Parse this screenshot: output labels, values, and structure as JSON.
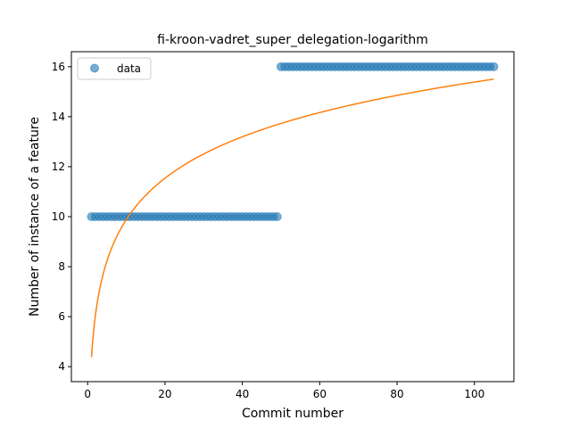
{
  "chart_data": {
    "type": "scatter",
    "title": "fi-kroon-vadret_super_delegation-logarithm",
    "xlabel": "Commit number",
    "ylabel": "Number of instance of a feature",
    "xlim": [
      -4.2,
      110.2
    ],
    "ylim": [
      3.4,
      16.6
    ],
    "xticks": [
      0,
      20,
      40,
      60,
      80,
      100
    ],
    "yticks": [
      4,
      6,
      8,
      10,
      12,
      14,
      16
    ],
    "legend": {
      "position": "top-left",
      "entries": [
        "data"
      ]
    },
    "series": [
      {
        "name": "data",
        "kind": "scatter",
        "color": "#1f77b4",
        "segments": [
          {
            "x_start": 1,
            "x_end": 49,
            "y": 10
          },
          {
            "x_start": 50,
            "x_end": 105,
            "y": 16
          }
        ]
      },
      {
        "kind": "line",
        "color": "#ff7f0e",
        "fit": {
          "form": "a*ln(x)+b",
          "a": 2.39,
          "b": 4.38,
          "x_start": 1,
          "x_end": 105
        }
      }
    ]
  }
}
